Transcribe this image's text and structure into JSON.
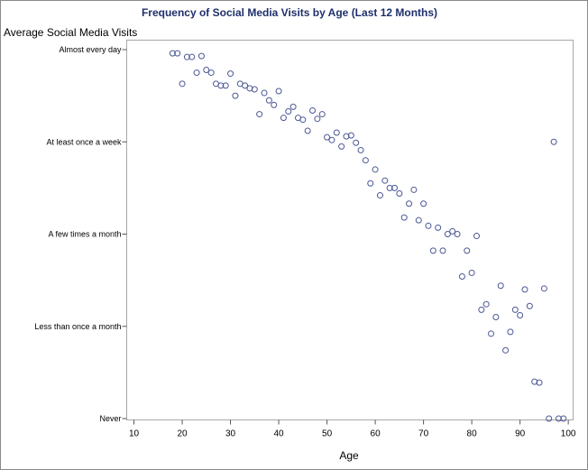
{
  "chart_data": {
    "type": "scatter",
    "title": "Frequency of Social Media Visits by Age (Last 12 Months)",
    "xlabel": "Age",
    "ylabel": "Average Social Media Visits",
    "xlim": [
      8.5,
      101
    ],
    "ylim": [
      0,
      4
    ],
    "x_ticks": [
      10,
      20,
      30,
      40,
      50,
      60,
      70,
      80,
      90,
      100
    ],
    "y_ticks": [
      {
        "value": 0,
        "label": "Never"
      },
      {
        "value": 1,
        "label": "Less than once a month"
      },
      {
        "value": 2,
        "label": "A few times a month"
      },
      {
        "value": 3,
        "label": "At least once a week"
      },
      {
        "value": 4,
        "label": "Almost every day"
      }
    ],
    "grid": false,
    "legend": "none",
    "marker_color": "#4b5795",
    "points": [
      {
        "x": 18,
        "y": 3.96
      },
      {
        "x": 19,
        "y": 3.96
      },
      {
        "x": 20,
        "y": 3.63
      },
      {
        "x": 21,
        "y": 3.92
      },
      {
        "x": 22,
        "y": 3.92
      },
      {
        "x": 23,
        "y": 3.75
      },
      {
        "x": 24,
        "y": 3.93
      },
      {
        "x": 25,
        "y": 3.78
      },
      {
        "x": 26,
        "y": 3.75
      },
      {
        "x": 27,
        "y": 3.63
      },
      {
        "x": 28,
        "y": 3.61
      },
      {
        "x": 29,
        "y": 3.61
      },
      {
        "x": 30,
        "y": 3.74
      },
      {
        "x": 31,
        "y": 3.5
      },
      {
        "x": 32,
        "y": 3.63
      },
      {
        "x": 33,
        "y": 3.61
      },
      {
        "x": 34,
        "y": 3.58
      },
      {
        "x": 35,
        "y": 3.57
      },
      {
        "x": 36,
        "y": 3.3
      },
      {
        "x": 37,
        "y": 3.53
      },
      {
        "x": 38,
        "y": 3.45
      },
      {
        "x": 39,
        "y": 3.4
      },
      {
        "x": 40,
        "y": 3.55
      },
      {
        "x": 41,
        "y": 3.26
      },
      {
        "x": 42,
        "y": 3.33
      },
      {
        "x": 43,
        "y": 3.38
      },
      {
        "x": 44,
        "y": 3.26
      },
      {
        "x": 45,
        "y": 3.24
      },
      {
        "x": 46,
        "y": 3.12
      },
      {
        "x": 47,
        "y": 3.34
      },
      {
        "x": 48,
        "y": 3.25
      },
      {
        "x": 49,
        "y": 3.3
      },
      {
        "x": 50,
        "y": 3.05
      },
      {
        "x": 51,
        "y": 3.02
      },
      {
        "x": 52,
        "y": 3.1
      },
      {
        "x": 53,
        "y": 2.95
      },
      {
        "x": 54,
        "y": 3.06
      },
      {
        "x": 55,
        "y": 3.07
      },
      {
        "x": 56,
        "y": 2.99
      },
      {
        "x": 57,
        "y": 2.91
      },
      {
        "x": 58,
        "y": 2.8
      },
      {
        "x": 59,
        "y": 2.55
      },
      {
        "x": 60,
        "y": 2.7
      },
      {
        "x": 61,
        "y": 2.42
      },
      {
        "x": 62,
        "y": 2.58
      },
      {
        "x": 63,
        "y": 2.5
      },
      {
        "x": 64,
        "y": 2.5
      },
      {
        "x": 65,
        "y": 2.44
      },
      {
        "x": 66,
        "y": 2.18
      },
      {
        "x": 67,
        "y": 2.33
      },
      {
        "x": 68,
        "y": 2.48
      },
      {
        "x": 69,
        "y": 2.15
      },
      {
        "x": 70,
        "y": 2.33
      },
      {
        "x": 71,
        "y": 2.09
      },
      {
        "x": 72,
        "y": 1.82
      },
      {
        "x": 73,
        "y": 2.07
      },
      {
        "x": 74,
        "y": 1.82
      },
      {
        "x": 75,
        "y": 2.0
      },
      {
        "x": 76,
        "y": 2.03
      },
      {
        "x": 77,
        "y": 2.0
      },
      {
        "x": 78,
        "y": 1.54
      },
      {
        "x": 79,
        "y": 1.82
      },
      {
        "x": 80,
        "y": 1.58
      },
      {
        "x": 81,
        "y": 1.98
      },
      {
        "x": 82,
        "y": 1.18
      },
      {
        "x": 83,
        "y": 1.24
      },
      {
        "x": 84,
        "y": 0.92
      },
      {
        "x": 85,
        "y": 1.1
      },
      {
        "x": 86,
        "y": 1.44
      },
      {
        "x": 87,
        "y": 0.74
      },
      {
        "x": 88,
        "y": 0.94
      },
      {
        "x": 89,
        "y": 1.18
      },
      {
        "x": 90,
        "y": 1.12
      },
      {
        "x": 91,
        "y": 1.4
      },
      {
        "x": 92,
        "y": 1.22
      },
      {
        "x": 93,
        "y": 0.4
      },
      {
        "x": 94,
        "y": 0.39
      },
      {
        "x": 95,
        "y": 1.41
      },
      {
        "x": 96,
        "y": 0.0
      },
      {
        "x": 97,
        "y": 3.0
      },
      {
        "x": 98,
        "y": 0.0
      },
      {
        "x": 99,
        "y": 0.0
      }
    ]
  }
}
